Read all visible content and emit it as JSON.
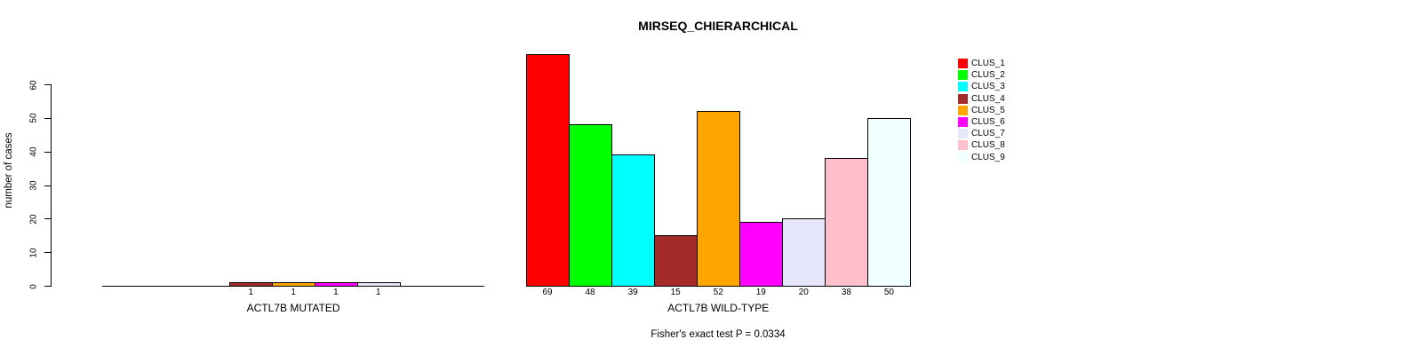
{
  "chart_data": {
    "type": "bar",
    "title": "MIRSEQ_CHIERARCHICAL",
    "ylabel": "number of cases",
    "ylim": [
      0,
      69
    ],
    "yticks": [
      0,
      10,
      20,
      30,
      40,
      50,
      60
    ],
    "grid": false,
    "legend_position": "right",
    "legend": [
      {
        "label": "CLUS_1",
        "color": "#ff0000"
      },
      {
        "label": "CLUS_2",
        "color": "#00ff00"
      },
      {
        "label": "CLUS_3",
        "color": "#00ffff"
      },
      {
        "label": "CLUS_4",
        "color": "#a52a2a"
      },
      {
        "label": "CLUS_5",
        "color": "#ffa500"
      },
      {
        "label": "CLUS_6",
        "color": "#ff00ff"
      },
      {
        "label": "CLUS_7",
        "color": "#e6e6fa"
      },
      {
        "label": "CLUS_8",
        "color": "#ffc0cb"
      },
      {
        "label": "CLUS_9",
        "color": "#f0ffff"
      }
    ],
    "groups": [
      {
        "label": "ACTL7B MUTATED",
        "values": [
          0,
          0,
          0,
          1,
          1,
          1,
          1,
          0,
          0
        ]
      },
      {
        "label": "ACTL7B WILD-TYPE",
        "values": [
          69,
          48,
          39,
          15,
          52,
          19,
          20,
          38,
          50
        ]
      }
    ],
    "annotation": "Fisher's exact test P = 0.0334",
    "colors": {
      "axis": "#000000",
      "bar_border": "#000000",
      "text": "#000000",
      "background": "#ffffff"
    }
  }
}
